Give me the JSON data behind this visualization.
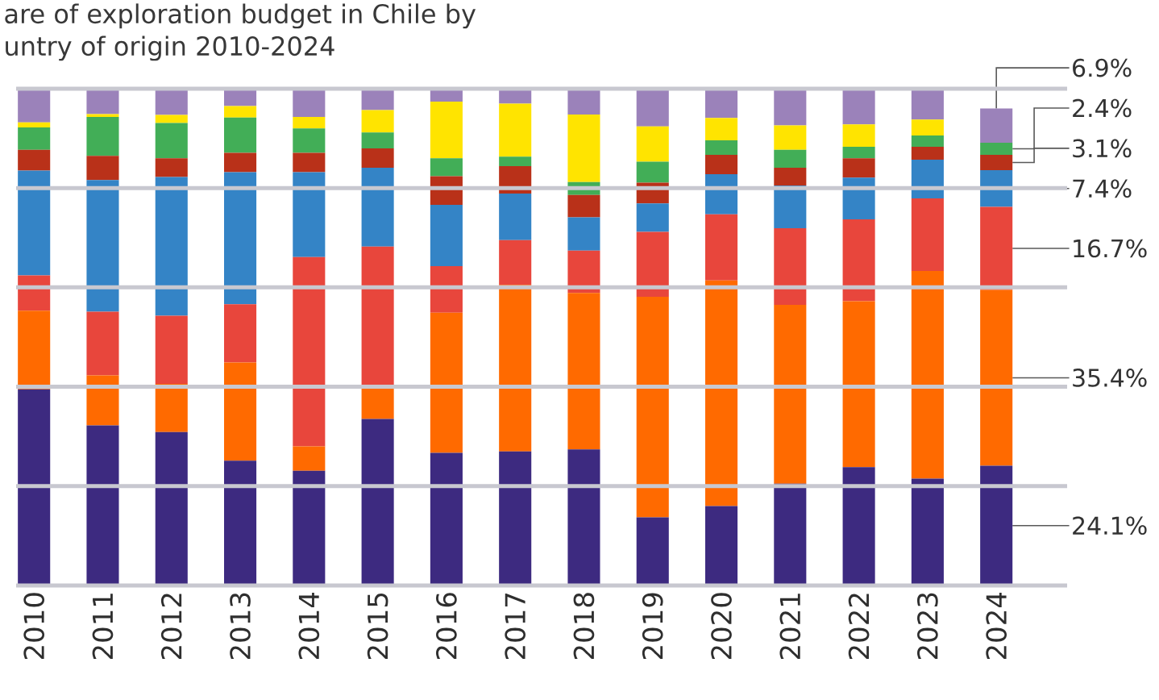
{
  "chart_data": {
    "type": "bar",
    "stacked": true,
    "title": "are of exploration budget in Chile by",
    "subtitle": "untry of origin 2010-2024",
    "categories": [
      "2010",
      "2011",
      "2012",
      "2013",
      "2014",
      "2015",
      "2016",
      "2017",
      "2018",
      "2019",
      "2020",
      "2021",
      "2022",
      "2023",
      "2024"
    ],
    "ylim": [
      0,
      100
    ],
    "yticks": [
      {
        "value": 0,
        "label": null
      },
      {
        "value": 20,
        "label": null
      },
      {
        "value": 40,
        "label": null
      },
      {
        "value": 60,
        "label": null
      },
      {
        "value": 80,
        "label": null
      },
      {
        "value": 100,
        "label": null
      }
    ],
    "grid": "y",
    "series": [
      {
        "color": "#3d2a80",
        "values": [
          39.5,
          32.2,
          30.9,
          25.1,
          23.1,
          33.5,
          26.7,
          27.0,
          27.4,
          13.7,
          16.0,
          20.5,
          23.8,
          21.5,
          24.1
        ],
        "value_labels": [
          null,
          null,
          null,
          null,
          null,
          null,
          null,
          null,
          null,
          null,
          null,
          null,
          null,
          null,
          "24.1%"
        ]
      },
      {
        "color": "#ff6a00",
        "values": [
          15.8,
          10.1,
          9.7,
          19.8,
          4.9,
          6.8,
          28.2,
          33.5,
          31.5,
          44.4,
          45.4,
          36.0,
          33.4,
          41.8,
          35.4
        ],
        "value_labels": [
          null,
          null,
          null,
          null,
          null,
          null,
          null,
          null,
          null,
          null,
          null,
          null,
          null,
          null,
          "35.4%"
        ]
      },
      {
        "color": "#e8463c",
        "values": [
          7.1,
          12.8,
          13.7,
          11.7,
          38.1,
          27.9,
          9.4,
          9.0,
          8.5,
          13.1,
          13.3,
          15.4,
          16.5,
          14.6,
          16.7
        ],
        "value_labels": [
          null,
          null,
          null,
          null,
          null,
          null,
          null,
          null,
          null,
          null,
          null,
          null,
          null,
          null,
          "16.7%"
        ]
      },
      {
        "color": "#3484c6",
        "values": [
          21.1,
          26.5,
          27.9,
          26.6,
          17.1,
          15.9,
          12.3,
          9.4,
          6.7,
          5.7,
          8.1,
          8.6,
          8.4,
          7.8,
          7.4
        ],
        "value_labels": [
          null,
          null,
          null,
          null,
          null,
          null,
          null,
          null,
          null,
          null,
          null,
          null,
          null,
          null,
          "7.4%"
        ]
      },
      {
        "color": "#b93119",
        "values": [
          4.2,
          4.9,
          3.8,
          3.9,
          3.9,
          3.9,
          5.8,
          5.5,
          4.5,
          4.2,
          3.9,
          3.6,
          3.9,
          2.6,
          3.1
        ],
        "value_labels": [
          null,
          null,
          null,
          null,
          null,
          null,
          null,
          null,
          null,
          null,
          null,
          null,
          null,
          null,
          "3.1%"
        ]
      },
      {
        "color": "#42ae57",
        "values": [
          4.5,
          7.8,
          7.1,
          7.1,
          4.9,
          3.2,
          3.6,
          1.9,
          2.6,
          4.2,
          2.9,
          3.6,
          2.3,
          2.3,
          2.4
        ],
        "value_labels": [
          null,
          null,
          null,
          null,
          null,
          null,
          null,
          null,
          null,
          null,
          null,
          null,
          null,
          null,
          "2.4%"
        ]
      },
      {
        "color": "#ffe400",
        "values": [
          1.0,
          0.6,
          1.6,
          2.3,
          2.3,
          4.5,
          11.4,
          10.7,
          13.6,
          7.1,
          4.5,
          4.9,
          4.5,
          3.2,
          null
        ]
      },
      {
        "color": "#9b82ba",
        "values": [
          6.8,
          5.1,
          5.3,
          3.5,
          5.7,
          4.3,
          2.6,
          3.0,
          5.2,
          7.6,
          5.9,
          7.4,
          7.2,
          6.2,
          6.9
        ],
        "value_labels": [
          null,
          null,
          null,
          null,
          null,
          null,
          null,
          null,
          null,
          null,
          null,
          null,
          null,
          null,
          "6.9%"
        ]
      }
    ]
  }
}
